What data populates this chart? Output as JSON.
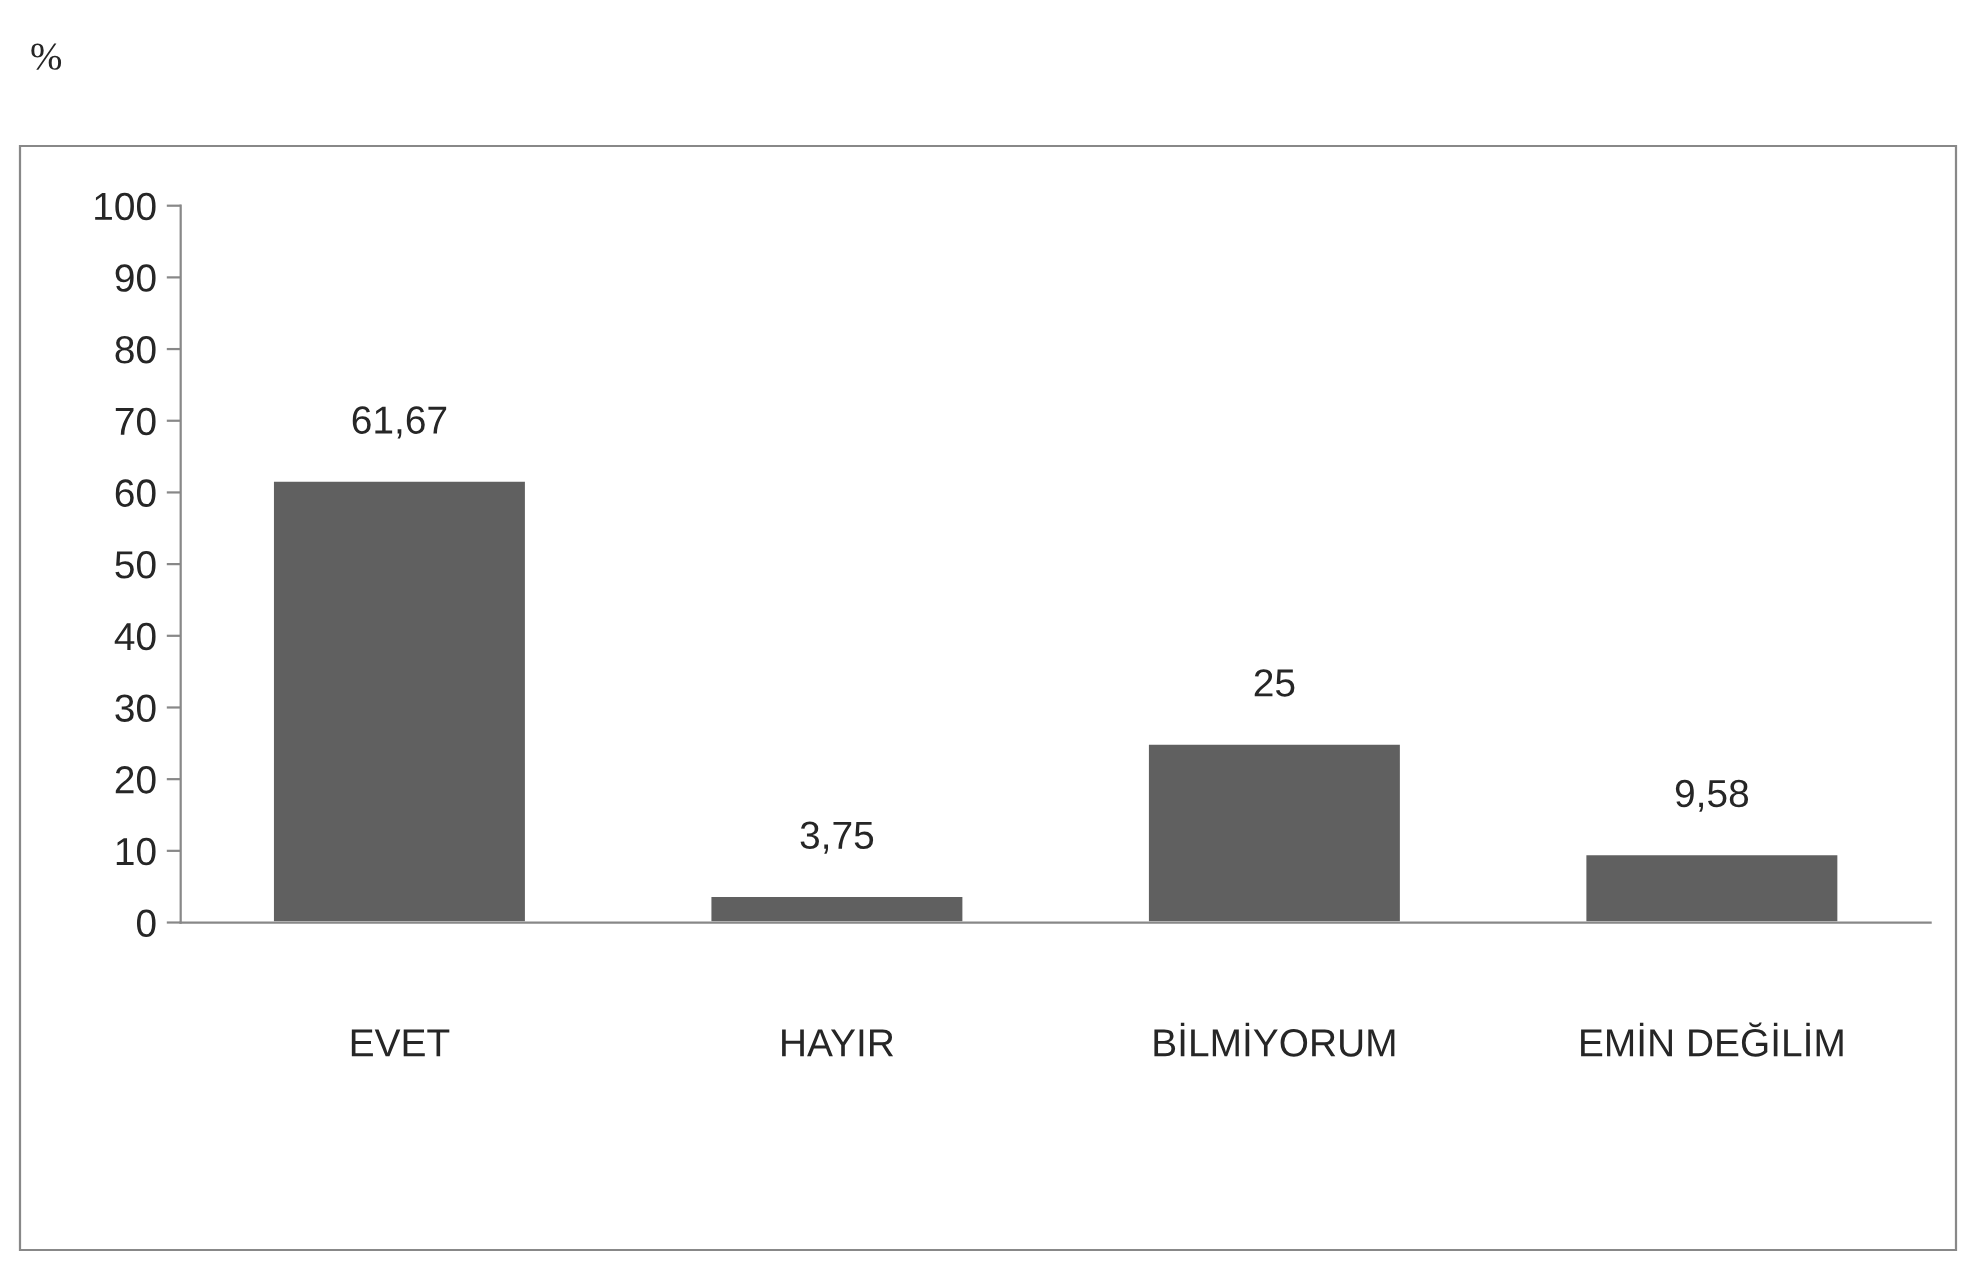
{
  "chart_data": {
    "type": "bar",
    "ylabel": "%",
    "categories": [
      "EVET",
      "HAYIR",
      "BİLMİYORUM",
      "EMİN DEĞİLİM"
    ],
    "values": [
      61.67,
      3.75,
      25,
      9.58
    ],
    "value_labels": [
      "61,67",
      "3,75",
      "25",
      "9,58"
    ],
    "color": "#606060",
    "ylim": [
      0,
      100
    ],
    "yticks": [
      0,
      10,
      20,
      30,
      40,
      50,
      60,
      70,
      80,
      90,
      100
    ],
    "grid": false,
    "legend": false
  }
}
